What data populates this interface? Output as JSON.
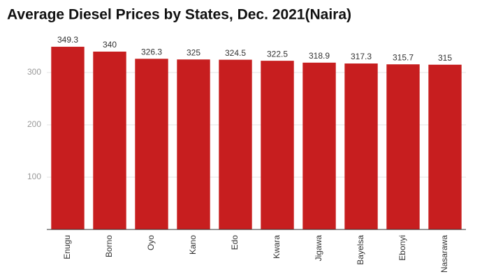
{
  "chart_data": {
    "type": "bar",
    "title": "Average Diesel Prices by States, Dec. 2021(Naira)",
    "categories": [
      "Enugu",
      "Borno",
      "Oyo",
      "Kano",
      "Edo",
      "Kwara",
      "Jigawa",
      "Bayelsa",
      "Ebonyi",
      "Nasarawa"
    ],
    "values": [
      349.3,
      340,
      326.3,
      325,
      324.5,
      322.5,
      318.9,
      317.3,
      315.7,
      315
    ],
    "color": "#c71e1f",
    "ylim": [
      0,
      360
    ],
    "yticks": [
      100,
      200,
      300
    ],
    "grid": true
  }
}
